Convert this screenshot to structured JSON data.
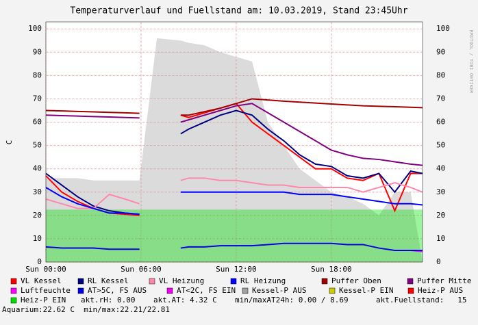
{
  "chart_data": {
    "type": "line",
    "title": "Temperaturverlauf und Fuellstand am: 10.03.2019, Stand 23:45Uhr",
    "ylabel": "C",
    "watermark": "RRDTOOL / TOBI OETIKER",
    "x": [
      0,
      1,
      2,
      3,
      4,
      5,
      5.9,
      7,
      8.5,
      9,
      10,
      11,
      12,
      13,
      14,
      15,
      16,
      17,
      18,
      19,
      20,
      21,
      22,
      23,
      23.75
    ],
    "xlim": [
      0,
      23.75
    ],
    "xticks": [
      {
        "value": 0,
        "label": "Sun 00:00"
      },
      {
        "value": 6,
        "label": "Sun 06:00"
      },
      {
        "value": 12,
        "label": "Sun 12:00"
      },
      {
        "value": 18,
        "label": "Sun 18:00"
      }
    ],
    "ylim": [
      0,
      103
    ],
    "yticks": [
      0,
      10,
      20,
      30,
      40,
      50,
      60,
      70,
      80,
      90,
      100
    ],
    "grid": true,
    "series": [
      {
        "name": "Kessel-P AUS",
        "color": "#a0a0a0",
        "area": true,
        "values": [
          36,
          36,
          36,
          35,
          35,
          35,
          35,
          96,
          95,
          94,
          93,
          90,
          88,
          86,
          60,
          50,
          40,
          35,
          30,
          28,
          25,
          20,
          30,
          30,
          0
        ]
      },
      {
        "name": "Heiz-P EIN",
        "color": "#00e000",
        "area": true,
        "values": [
          22.5,
          22.5,
          22.5,
          22.5,
          22.5,
          22.5,
          22.5,
          22.5,
          22.5,
          22.5,
          22.5,
          22.5,
          22.5,
          22.5,
          22.5,
          22.5,
          22.5,
          22.5,
          22.5,
          22.5,
          22.5,
          22.5,
          22.5,
          22.5,
          22.5
        ]
      },
      {
        "name": "VL Kessel",
        "color": "#ff0000",
        "values": [
          37,
          30,
          26,
          23,
          21,
          20.5,
          20,
          null,
          63,
          62,
          64,
          66,
          68,
          60,
          55,
          50,
          45,
          40,
          40,
          36,
          35,
          38,
          22,
          38,
          38
        ]
      },
      {
        "name": "RL Kessel",
        "color": "#000080",
        "values": [
          38,
          33,
          28,
          24,
          22,
          21,
          20.5,
          null,
          55,
          57,
          60,
          63,
          65,
          63,
          57,
          52,
          46,
          42,
          41,
          37,
          36,
          38,
          30,
          39,
          38
        ]
      },
      {
        "name": "VL Heizung",
        "color": "#ff88aa",
        "values": [
          27,
          25,
          23,
          23,
          29,
          27,
          25,
          null,
          35,
          36,
          36,
          35,
          35,
          34,
          33,
          33,
          32,
          32,
          32,
          32,
          30,
          32,
          34,
          32,
          30
        ]
      },
      {
        "name": "RL Heizung",
        "color": "#0000ff",
        "values": [
          32,
          28,
          25,
          23,
          21,
          21,
          20.5,
          null,
          30,
          30,
          30,
          30,
          30,
          30,
          30,
          30,
          29,
          29,
          29,
          28,
          27,
          26,
          25,
          25,
          24.5
        ]
      },
      {
        "name": "Puffer Oben",
        "color": "#a00000",
        "values": [
          65,
          64.8,
          64.6,
          64.4,
          64.2,
          64,
          63.8,
          null,
          63,
          63,
          64.5,
          66,
          68,
          70,
          69.5,
          69,
          68.6,
          68.2,
          67.8,
          67.4,
          67,
          66.8,
          66.6,
          66.4,
          66.2
        ]
      },
      {
        "name": "Puffer Mitte",
        "color": "#800080",
        "values": [
          63,
          62.8,
          62.6,
          62.4,
          62.2,
          62,
          61.8,
          null,
          60,
          61,
          63,
          65,
          67,
          68,
          64,
          60,
          56,
          52,
          48,
          46,
          44.5,
          44,
          43,
          42,
          41.5
        ]
      },
      {
        "name": "Luftfeuchte",
        "color": "#ff00ff",
        "values": [
          null,
          null,
          null,
          null,
          null,
          null,
          null,
          null,
          null,
          null,
          null,
          null,
          null,
          null,
          null,
          null,
          null,
          null,
          null,
          null,
          null,
          null,
          5,
          5,
          4.5
        ]
      },
      {
        "name": "AT>5C, FS AUS",
        "color": "#0000dd",
        "values": [
          6.5,
          6,
          6,
          6,
          5.5,
          5.5,
          5.5,
          null,
          6,
          6.5,
          6.5,
          7,
          7,
          7,
          7.5,
          8,
          8,
          8,
          8,
          7.5,
          7.5,
          6,
          5,
          5,
          5
        ]
      },
      {
        "name": "AT<2C, FS EIN",
        "color": "#ee00ee",
        "values": [
          null,
          null,
          null,
          null,
          null,
          null,
          null,
          null,
          null,
          null,
          null,
          null,
          null,
          null,
          null,
          null,
          null,
          null,
          null,
          null,
          null,
          null,
          null,
          null,
          null
        ]
      },
      {
        "name": "Kessel-P EIN",
        "color": "#cccc00",
        "values": [
          null,
          null,
          null,
          null,
          null,
          null,
          null,
          null,
          null,
          null,
          null,
          null,
          null,
          null,
          null,
          null,
          null,
          null,
          null,
          null,
          null,
          null,
          null,
          null,
          null
        ]
      },
      {
        "name": "Heiz-P AUS",
        "color": "#ff0000",
        "values": [
          null,
          null,
          null,
          null,
          null,
          null,
          null,
          null,
          null,
          null,
          null,
          null,
          null,
          null,
          null,
          null,
          null,
          null,
          null,
          null,
          null,
          null,
          null,
          null,
          null
        ]
      }
    ],
    "footer": [
      "akt.rH: 0.00",
      "akt.AT: 4.32 C",
      "min/maxAT24h: 0.00 / 8.69",
      "akt.Fuellstand:   15",
      "Aquarium:22.62 C  min/max:22.21/22.81"
    ]
  }
}
